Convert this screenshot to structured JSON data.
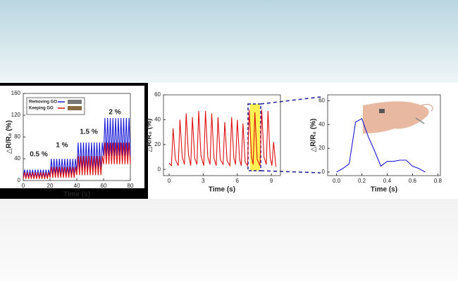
{
  "chart_data": [
    {
      "type": "line",
      "x_label": "Time  (s)",
      "y_label": "△R/R₀ (%)",
      "annotations": [
        "0.5 %",
        "1 %",
        "1.5 %",
        "2 %"
      ],
      "x": [
        0,
        1,
        2,
        3,
        4,
        5,
        6,
        7,
        8,
        9,
        10,
        11,
        12,
        13,
        14,
        15,
        16,
        17,
        18,
        19,
        20,
        21,
        22,
        23,
        24,
        25,
        26,
        27,
        28,
        29,
        30,
        31,
        32,
        33,
        34,
        35,
        36,
        37,
        38,
        39,
        40,
        41,
        42,
        43,
        44,
        45,
        46,
        47,
        48,
        49,
        50,
        51,
        52,
        53,
        54,
        55,
        56,
        57,
        58,
        59,
        60,
        61,
        62,
        63,
        64,
        65,
        66,
        67,
        68,
        69,
        70,
        71,
        72,
        73,
        74,
        75,
        76,
        77,
        78,
        79,
        80
      ],
      "series": [
        {
          "name": "Removing GO",
          "color": "#1a1ad8",
          "values": [
            5,
            20,
            5,
            20,
            5,
            20,
            5,
            20,
            5,
            20,
            5,
            20,
            5,
            20,
            5,
            20,
            5,
            20,
            5,
            20,
            8,
            40,
            8,
            40,
            8,
            40,
            8,
            40,
            8,
            40,
            8,
            40,
            8,
            40,
            8,
            40,
            8,
            40,
            8,
            40,
            15,
            70,
            15,
            70,
            15,
            70,
            15,
            70,
            15,
            70,
            15,
            70,
            15,
            70,
            15,
            70,
            15,
            70,
            15,
            70,
            45,
            115,
            45,
            115,
            45,
            115,
            45,
            115,
            45,
            115,
            45,
            115,
            45,
            115,
            45,
            115,
            45,
            115,
            45,
            115,
            45
          ]
        },
        {
          "name": "Keeping GO",
          "color": "#e01010",
          "values": [
            3,
            15,
            3,
            15,
            3,
            15,
            3,
            15,
            3,
            15,
            3,
            15,
            3,
            15,
            3,
            15,
            3,
            15,
            3,
            15,
            5,
            25,
            5,
            25,
            5,
            25,
            5,
            25,
            5,
            25,
            5,
            25,
            5,
            25,
            5,
            25,
            5,
            25,
            5,
            25,
            10,
            45,
            10,
            45,
            10,
            45,
            10,
            45,
            10,
            45,
            10,
            45,
            10,
            45,
            10,
            45,
            10,
            45,
            10,
            45,
            30,
            70,
            30,
            70,
            30,
            70,
            30,
            70,
            30,
            70,
            30,
            70,
            30,
            70,
            30,
            70,
            30,
            70,
            30,
            70,
            30
          ]
        }
      ],
      "xlim": [
        0,
        80
      ],
      "xticks": [
        0,
        20,
        40,
        60,
        80
      ],
      "ylim": [
        0,
        160
      ],
      "yticks": [
        0,
        40,
        80,
        120,
        160
      ],
      "legend": "upper left"
    },
    {
      "type": "line",
      "x_label": "Time (s)",
      "y_label": "△R/R₀ (%)",
      "color": "#e01010",
      "x": [
        0,
        0.2,
        0.35,
        0.55,
        0.8,
        0.95,
        1.15,
        1.35,
        1.5,
        1.7,
        1.9,
        2.05,
        2.25,
        2.45,
        2.6,
        2.8,
        3.05,
        3.2,
        3.4,
        3.6,
        3.75,
        3.95,
        4.15,
        4.3,
        4.5,
        4.75,
        4.9,
        5.1,
        5.35,
        5.5,
        5.7,
        5.85,
        6.0,
        6.2,
        6.35,
        6.5,
        6.7,
        6.9,
        7.05,
        7.25,
        7.4,
        7.55,
        7.75,
        8.0,
        8.15,
        8.35,
        8.55,
        8.7,
        8.9,
        9.05,
        9.2,
        9.4
      ],
      "values": [
        5,
        3,
        33,
        8,
        3,
        40,
        10,
        4,
        45,
        12,
        3,
        42,
        9,
        4,
        47,
        11,
        3,
        47,
        10,
        4,
        45,
        9,
        3,
        42,
        8,
        4,
        38,
        7,
        3,
        42,
        9,
        4,
        40,
        8,
        3,
        37,
        6,
        3,
        48,
        10,
        4,
        46,
        8,
        3,
        48,
        10,
        4,
        47,
        9,
        3,
        22,
        2
      ],
      "xlim": [
        -0.5,
        9.8
      ],
      "xticks": [
        0,
        3,
        6,
        9
      ],
      "ylim": [
        -5,
        60
      ],
      "yticks": [
        0,
        20,
        40,
        60
      ]
    },
    {
      "type": "line",
      "x_label": "Time (s)",
      "y_label": "△R/R₀ (%)",
      "color": "#1a1ad8",
      "x": [
        0,
        0.05,
        0.1,
        0.15,
        0.2,
        0.25,
        0.3,
        0.35,
        0.4,
        0.45,
        0.5,
        0.55,
        0.6,
        0.65,
        0.7
      ],
      "values": [
        0,
        3,
        7,
        42,
        45,
        30,
        18,
        5,
        9,
        9,
        10,
        10,
        5,
        3,
        0
      ],
      "xlim": [
        -0.07,
        0.82
      ],
      "xticks": [
        {
          "value": 0,
          "label": "0.0"
        },
        {
          "value": 0.2,
          "label": "0.2"
        },
        {
          "value": 0.4,
          "label": "0.4"
        },
        {
          "value": 0.6,
          "label": "0.6"
        },
        {
          "value": 0.8,
          "label": "0.8"
        }
      ],
      "ylim": [
        -3,
        65
      ],
      "yticks": [
        0,
        20,
        40,
        60
      ]
    }
  ]
}
